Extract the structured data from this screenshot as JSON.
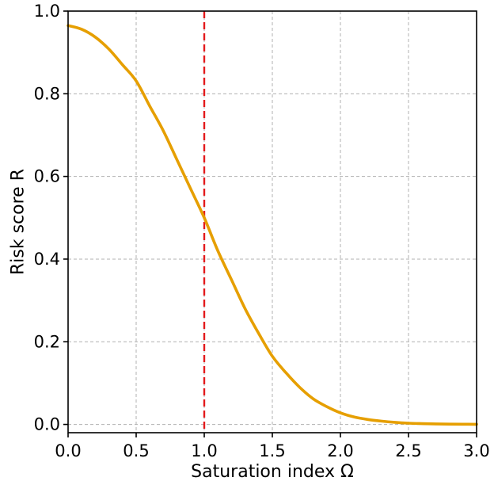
{
  "chart_data": {
    "type": "line",
    "title": "",
    "xlabel": "Saturation index Ω",
    "ylabel": "Risk score R",
    "xlim": [
      0.0,
      3.0
    ],
    "ylim": [
      -0.02,
      1.0
    ],
    "grid": true,
    "x_ticks": [
      0.0,
      0.5,
      1.0,
      1.5,
      2.0,
      2.5,
      3.0
    ],
    "x_tick_labels": [
      "0.0",
      "0.5",
      "1.0",
      "1.5",
      "2.0",
      "2.5",
      "3.0"
    ],
    "y_ticks": [
      0.0,
      0.2,
      0.4,
      0.6,
      0.8,
      1.0
    ],
    "y_tick_labels": [
      "0.0",
      "0.2",
      "0.4",
      "0.6",
      "0.8",
      "1.0"
    ],
    "series": [
      {
        "color": "#e69f00",
        "x": [
          0.0,
          0.1,
          0.2,
          0.3,
          0.4,
          0.5,
          0.6,
          0.7,
          0.8,
          0.9,
          1.0,
          1.1,
          1.2,
          1.3,
          1.4,
          1.5,
          1.6,
          1.7,
          1.8,
          1.9,
          2.0,
          2.1,
          2.2,
          2.3,
          2.4,
          2.5,
          2.6,
          2.7,
          2.8,
          2.9,
          3.0
        ],
        "y": [
          0.965,
          0.956,
          0.937,
          0.908,
          0.87,
          0.831,
          0.77,
          0.71,
          0.64,
          0.57,
          0.5,
          0.42,
          0.35,
          0.28,
          0.22,
          0.165,
          0.125,
          0.09,
          0.062,
          0.043,
          0.028,
          0.018,
          0.012,
          0.008,
          0.005,
          0.003,
          0.002,
          0.0013,
          0.0008,
          0.0005,
          0.0003
        ]
      }
    ],
    "reference_lines": [
      {
        "orientation": "vertical",
        "x": 1.0,
        "color": "#e31a1c",
        "style": "dashed"
      }
    ]
  }
}
